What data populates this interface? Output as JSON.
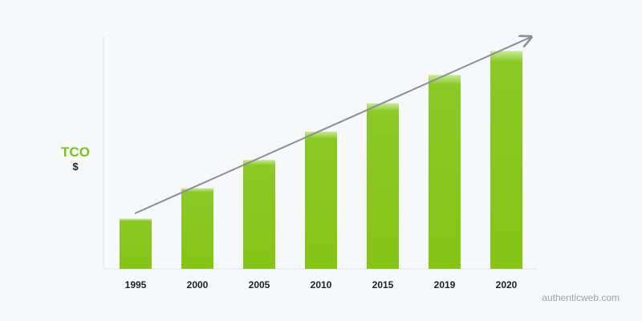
{
  "chart_data": {
    "type": "bar",
    "categories": [
      "1995",
      "2000",
      "2005",
      "2010",
      "2015",
      "2019",
      "2020"
    ],
    "values": [
      23,
      37,
      50,
      63,
      76,
      89,
      100
    ],
    "ylabel": "TCO",
    "yunit": "$",
    "ylim": [
      0,
      105
    ],
    "grid": false,
    "bar_color": "#8ac926",
    "bar_highlight_color": "#c9ea96",
    "trend_arrow": true,
    "trend_color": "#8c8c94"
  },
  "watermark": "authenticweb.com"
}
